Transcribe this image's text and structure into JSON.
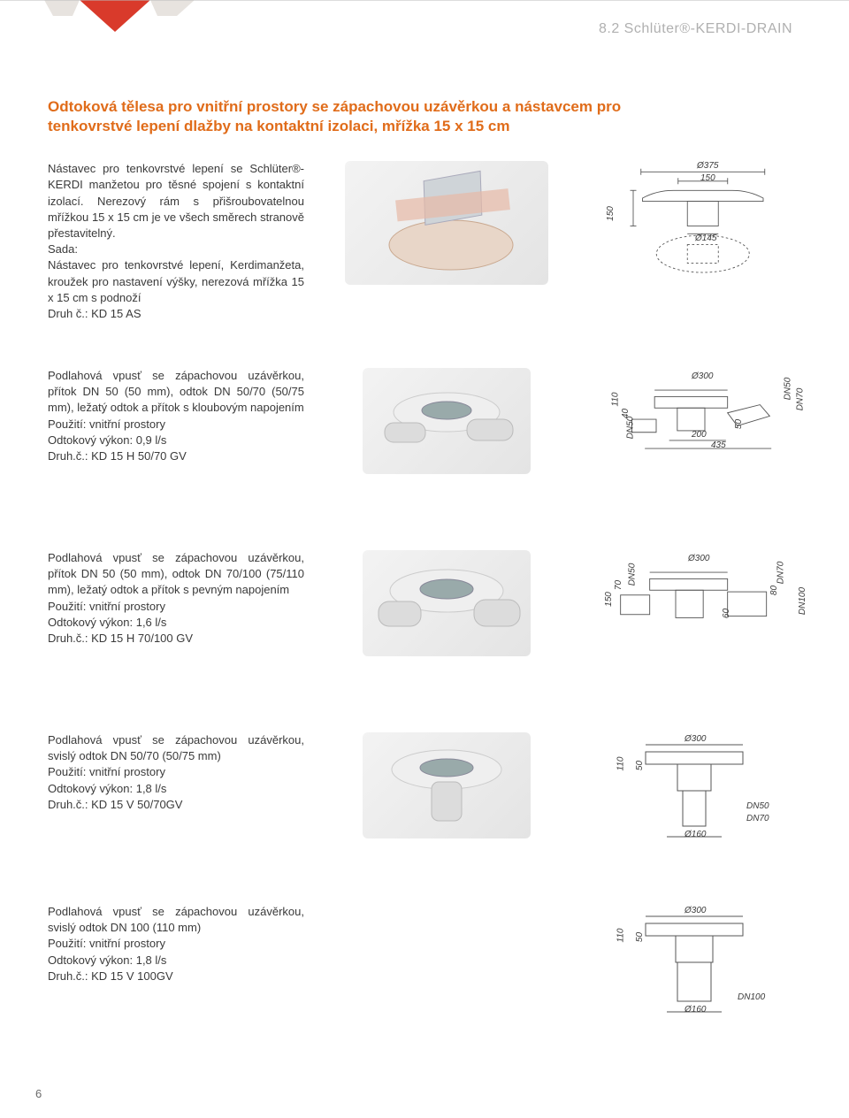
{
  "header": {
    "code": "8.2 Schlüter®-KERDI-DRAIN"
  },
  "section_title": "Odtoková tělesa pro vnitřní prostory se zápachovou uzávěrkou a nástavcem pro tenkovrstvé lepení dlažby na kontaktní izolaci, mřížka 15 x 15 cm",
  "products": [
    {
      "text": "Nástavec pro tenkovrstvé lepení se Schlüter®-KERDI manžetou pro těsné spojení s kontaktní izolací. Nerezový rám s přišroubovatelnou mřížkou 15 x 15 cm je ve všech směrech stranově přestavitelný.\nSada:\nNástavec pro tenkovrstvé lepení, Kerdimanžeta, kroužek pro nastavení výšky, nerezová mřížka 15 x 15 cm s podnoží\nDruh č.: KD 15 AS",
      "dims": {
        "a": "Ø375",
        "b": "150",
        "c": "150",
        "d": "Ø145"
      }
    },
    {
      "text": "Podlahová vpusť se zápachovou uzávěrkou, přítok DN 50 (50 mm), odtok DN 50/70 (50/75 mm), ležatý odtok a přítok s kloubovým napojením\nPoužití: vnitřní prostory\nOdtokový výkon: 0,9 l/s\nDruh.č.: KD 15 H 50/70 GV",
      "dims": {
        "a": "Ø300",
        "b": "110",
        "c": "40",
        "d": "DN50",
        "e": "200",
        "f": "50",
        "g": "435",
        "h": "DN50",
        "i": "DN70"
      }
    },
    {
      "text": "Podlahová vpusť se zápachovou uzávěrkou, přítok DN 50 (50 mm), odtok DN 70/100 (75/110 mm), ležatý odtok a přítok s pevným napojením\nPoužití: vnitřní prostory\nOdtokový výkon: 1,6 l/s\nDruh.č.: KD 15 H 70/100 GV",
      "dims": {
        "a": "Ø300",
        "b": "DN50",
        "c": "150",
        "d": "70",
        "e": "60",
        "f": "DN70",
        "g": "80",
        "h": "DN100"
      }
    },
    {
      "text": "Podlahová vpusť se zápachovou uzávěrkou, svislý odtok DN 50/70 (50/75 mm)\nPoužití: vnitřní prostory\nOdtokový výkon: 1,8 l/s\nDruh.č.: KD 15 V 50/70GV",
      "dims": {
        "a": "Ø300",
        "b": "110",
        "c": "50",
        "d": "DN50",
        "e": "DN70",
        "f": "Ø160"
      }
    },
    {
      "text": "Podlahová vpusť se zápachovou uzávěrkou, svislý odtok DN 100 (110 mm)\nPoužití: vnitřní prostory\nOdtokový výkon: 1,8 l/s\nDruh.č.: KD 15 V 100GV",
      "dims": {
        "a": "Ø300",
        "b": "110",
        "c": "50",
        "d": "DN100",
        "e": "Ø160"
      }
    }
  ],
  "page_number": "6",
  "colors": {
    "accent": "#e06c1a",
    "accent_red": "#d93a2b",
    "text": "#3a3a3a",
    "header_gray": "#b0b0b0"
  }
}
